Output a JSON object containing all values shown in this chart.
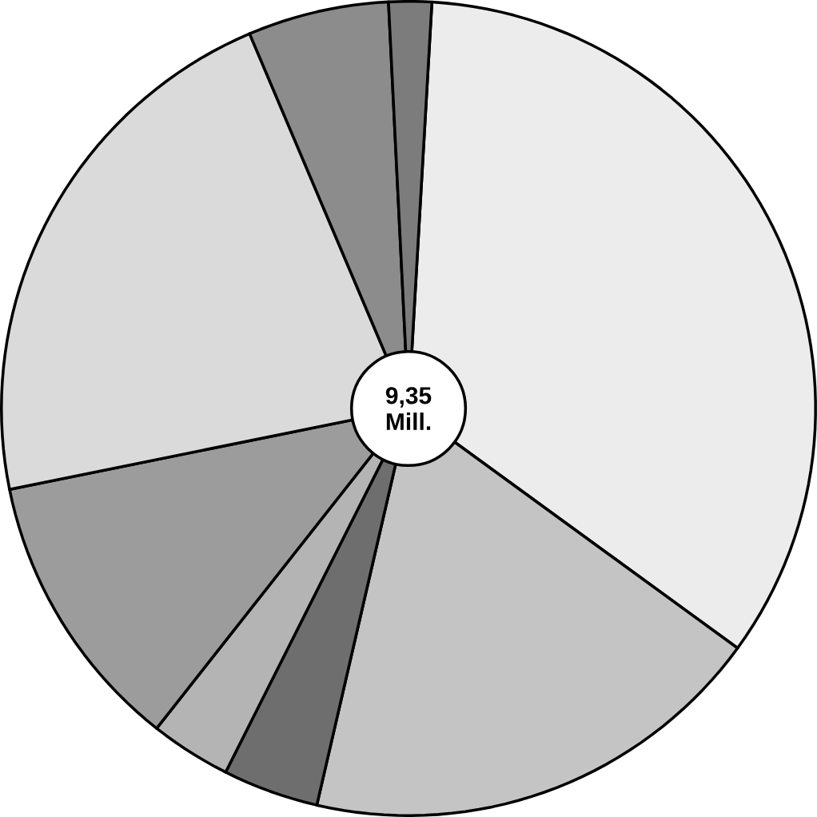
{
  "chart_data": {
    "type": "pie",
    "categories": [
      null,
      null,
      null,
      null,
      null,
      null,
      null,
      null
    ],
    "values": [
      34.1,
      18.6,
      3.8,
      3.2,
      11.2,
      21.8,
      5.6,
      1.7
    ],
    "colors": [
      "#ececec",
      "#c4c4c4",
      "#6e6e6e",
      "#b4b4b4",
      "#9c9c9c",
      "#dadada",
      "#8c8c8c",
      "#7c7c7c"
    ],
    "annotations": [
      "9,35 Mill."
    ]
  }
}
